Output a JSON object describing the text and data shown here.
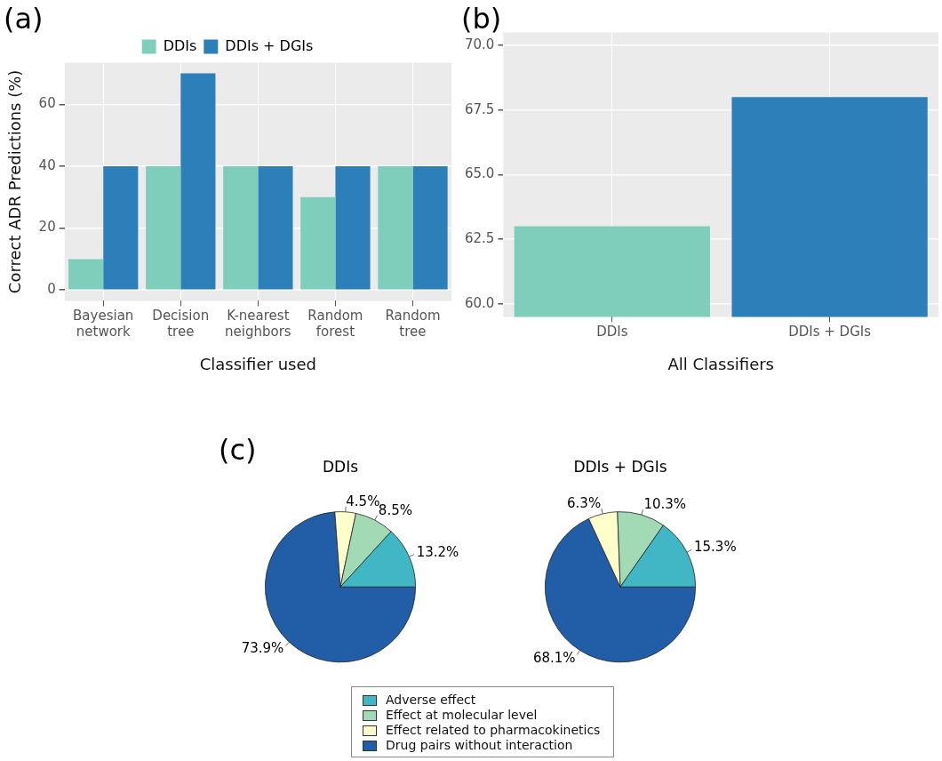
{
  "chart_data": [
    {
      "type": "bar",
      "title": "(a)",
      "xlabel": "Classifier used",
      "ylabel": "Correct ADR Predictions (%)",
      "categories": [
        "Bayesian network",
        "Decision tree",
        "K-nearest neighbors",
        "Random forest",
        "Random tree"
      ],
      "series": [
        {
          "name": "DDIs",
          "color": "#7fcdbb",
          "values": [
            10,
            40,
            40,
            30,
            40
          ]
        },
        {
          "name": "DDIs + DGIs",
          "color": "#2c7fb8",
          "values": [
            40,
            70,
            40,
            40,
            40
          ]
        }
      ],
      "ylim": [
        -3.5,
        73.5
      ],
      "yticks": [
        0,
        20,
        40,
        60
      ],
      "grid": true,
      "legend": "top"
    },
    {
      "type": "bar",
      "title": "(b)",
      "xlabel": "All Classifiers",
      "categories": [
        "DDIs",
        "DDIs + DGIs"
      ],
      "values": [
        63,
        68
      ],
      "colors": [
        "#7fcdbb",
        "#2c7fb8"
      ],
      "ylim": [
        59.5,
        70.5
      ],
      "yticks": [
        {
          "value": 60,
          "label": "60.0"
        },
        {
          "value": 62.5,
          "label": "62.5"
        },
        {
          "value": 65,
          "label": "65.0"
        },
        {
          "value": 67.5,
          "label": "67.5"
        },
        {
          "value": 70,
          "label": "70.0"
        }
      ],
      "grid": true
    },
    {
      "type": "pie",
      "title": "(c)",
      "categories": [
        "Adverse effect",
        "Effect at molecular level",
        "Effect related to pharmacokinetics",
        "Drug pairs without interaction"
      ],
      "colors": [
        "#41b6c4",
        "#a1dab4",
        "#ffffcc",
        "#225ea8"
      ],
      "series": [
        {
          "name": "DDIs",
          "values": [
            13.2,
            8.5,
            4.5,
            73.9
          ],
          "value_labels": [
            "13.2%",
            "8.5%",
            "4.5%",
            "73.9%"
          ]
        },
        {
          "name": "DDIs + DGIs",
          "values": [
            15.3,
            10.3,
            6.3,
            68.1
          ],
          "value_labels": [
            "15.3%",
            "10.3%",
            "6.3%",
            "68.1%"
          ]
        }
      ],
      "legend": "bottom"
    }
  ]
}
